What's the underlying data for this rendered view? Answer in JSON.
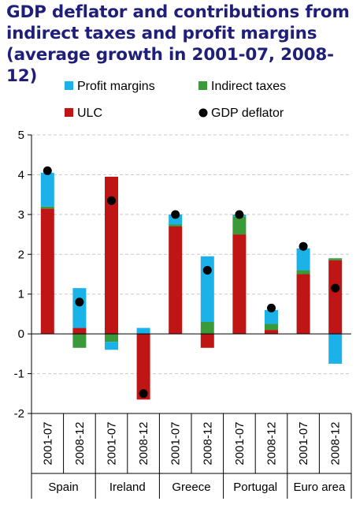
{
  "title": "GDP deflator and contributions from\nindirect taxes and profit margins\n(average growth in 2001-07, 2008-12)",
  "colors": {
    "profit_margins": "#1ab2e8",
    "indirect_taxes": "#3a9a3a",
    "ulc": "#c01515",
    "gdp_deflator": "#000000",
    "title": "#1f1f7a"
  },
  "chart_data": {
    "type": "bar",
    "stacked": true,
    "title": "GDP deflator and contributions from indirect taxes and profit margins (average growth in 2001-07, 2008-12)",
    "ylim": [
      -2,
      5
    ],
    "yticks": [
      "-2",
      "-1",
      "0",
      "1",
      "2",
      "3",
      "4",
      "5"
    ],
    "ytick_values": [
      -2,
      -1,
      0,
      1,
      2,
      3,
      4,
      5
    ],
    "grid": true,
    "legend_placement": "top",
    "categories": [
      "2001-07",
      "2008-12",
      "2001-07",
      "2008-12",
      "2001-07",
      "2008-12",
      "2001-07",
      "2008-12",
      "2001-07",
      "2008-12"
    ],
    "groups": [
      {
        "label": "Spain",
        "span": 2
      },
      {
        "label": "Ireland",
        "span": 2
      },
      {
        "label": "Greece",
        "span": 2
      },
      {
        "label": "Portugal",
        "span": 2
      },
      {
        "label": "Euro area",
        "span": 2
      }
    ],
    "series": [
      {
        "name": "ULC",
        "key": "ulc",
        "kind": "bar",
        "values": [
          3.15,
          0.15,
          3.95,
          -1.65,
          2.7,
          -0.35,
          2.5,
          0.1,
          1.5,
          1.85
        ]
      },
      {
        "name": "Indirect taxes",
        "key": "indirect_taxes",
        "kind": "bar",
        "values": [
          0.05,
          -0.35,
          -0.2,
          0.0,
          0.05,
          0.3,
          0.45,
          0.15,
          0.1,
          0.05
        ]
      },
      {
        "name": "Profit margins",
        "key": "profit_margins",
        "kind": "bar",
        "values": [
          0.85,
          1.0,
          -0.2,
          0.15,
          0.25,
          1.65,
          0.05,
          0.35,
          0.55,
          -0.75
        ]
      },
      {
        "name": "GDP deflator",
        "key": "gdp_deflator",
        "kind": "marker",
        "values": [
          4.1,
          0.8,
          3.35,
          -1.5,
          3.0,
          1.6,
          3.0,
          0.65,
          2.2,
          1.15
        ]
      }
    ],
    "legend": [
      {
        "label": "Profit margins",
        "key": "profit_margins",
        "shape": "square"
      },
      {
        "label": "Indirect taxes",
        "key": "indirect_taxes",
        "shape": "square"
      },
      {
        "label": "ULC",
        "key": "ulc",
        "shape": "square"
      },
      {
        "label": "GDP deflator",
        "key": "gdp_deflator",
        "shape": "circle"
      }
    ]
  }
}
